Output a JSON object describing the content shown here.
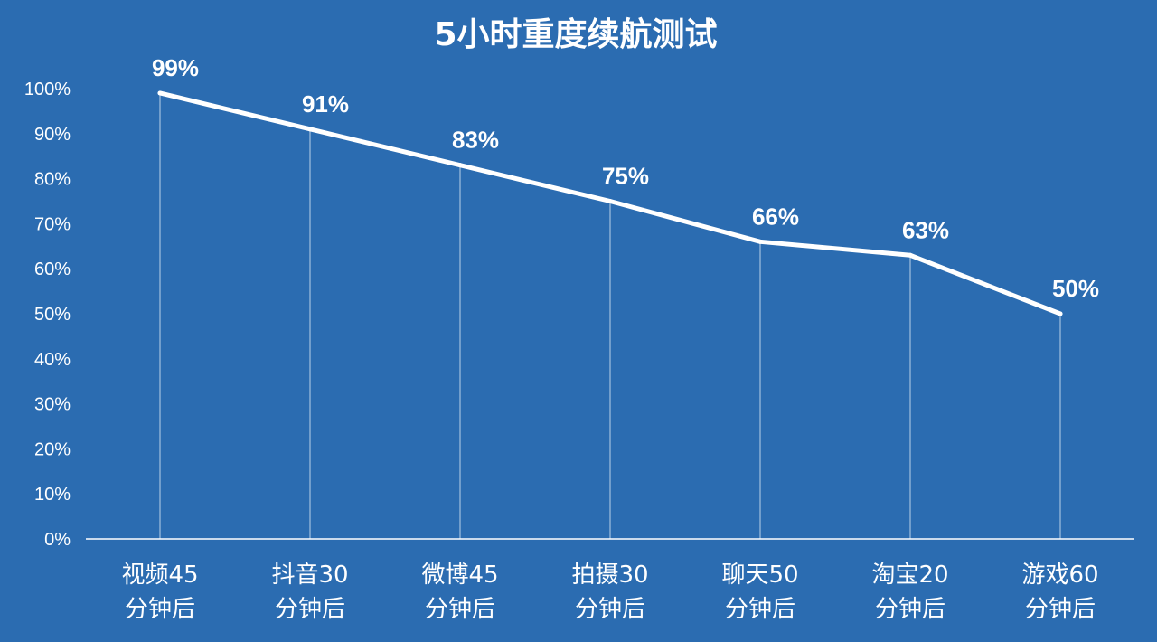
{
  "colors": {
    "background": "#2b6cb1",
    "line": "#ffffff",
    "text": "#ffffff",
    "drop_line": "#e8f0f8",
    "axis": "#ffffff"
  },
  "chart_data": {
    "type": "line",
    "title": "5小时重度续航测试",
    "xlabel": "",
    "ylabel": "",
    "categories": [
      "视频45\n分钟后",
      "抖音30\n分钟后",
      "微博45\n分钟后",
      "拍摄30\n分钟后",
      "聊天50\n分钟后",
      "淘宝20\n分钟后",
      "游戏60\n分钟后"
    ],
    "values": [
      99,
      91,
      83,
      75,
      66,
      63,
      50
    ],
    "data_labels": [
      "99%",
      "91%",
      "83%",
      "75%",
      "66%",
      "63%",
      "50%"
    ],
    "y_ticks": [
      "0%",
      "10%",
      "20%",
      "30%",
      "40%",
      "50%",
      "60%",
      "70%",
      "80%",
      "90%",
      "100%"
    ],
    "ylim": [
      0,
      100
    ],
    "grid": false,
    "legend": "none",
    "drop_lines": true
  }
}
